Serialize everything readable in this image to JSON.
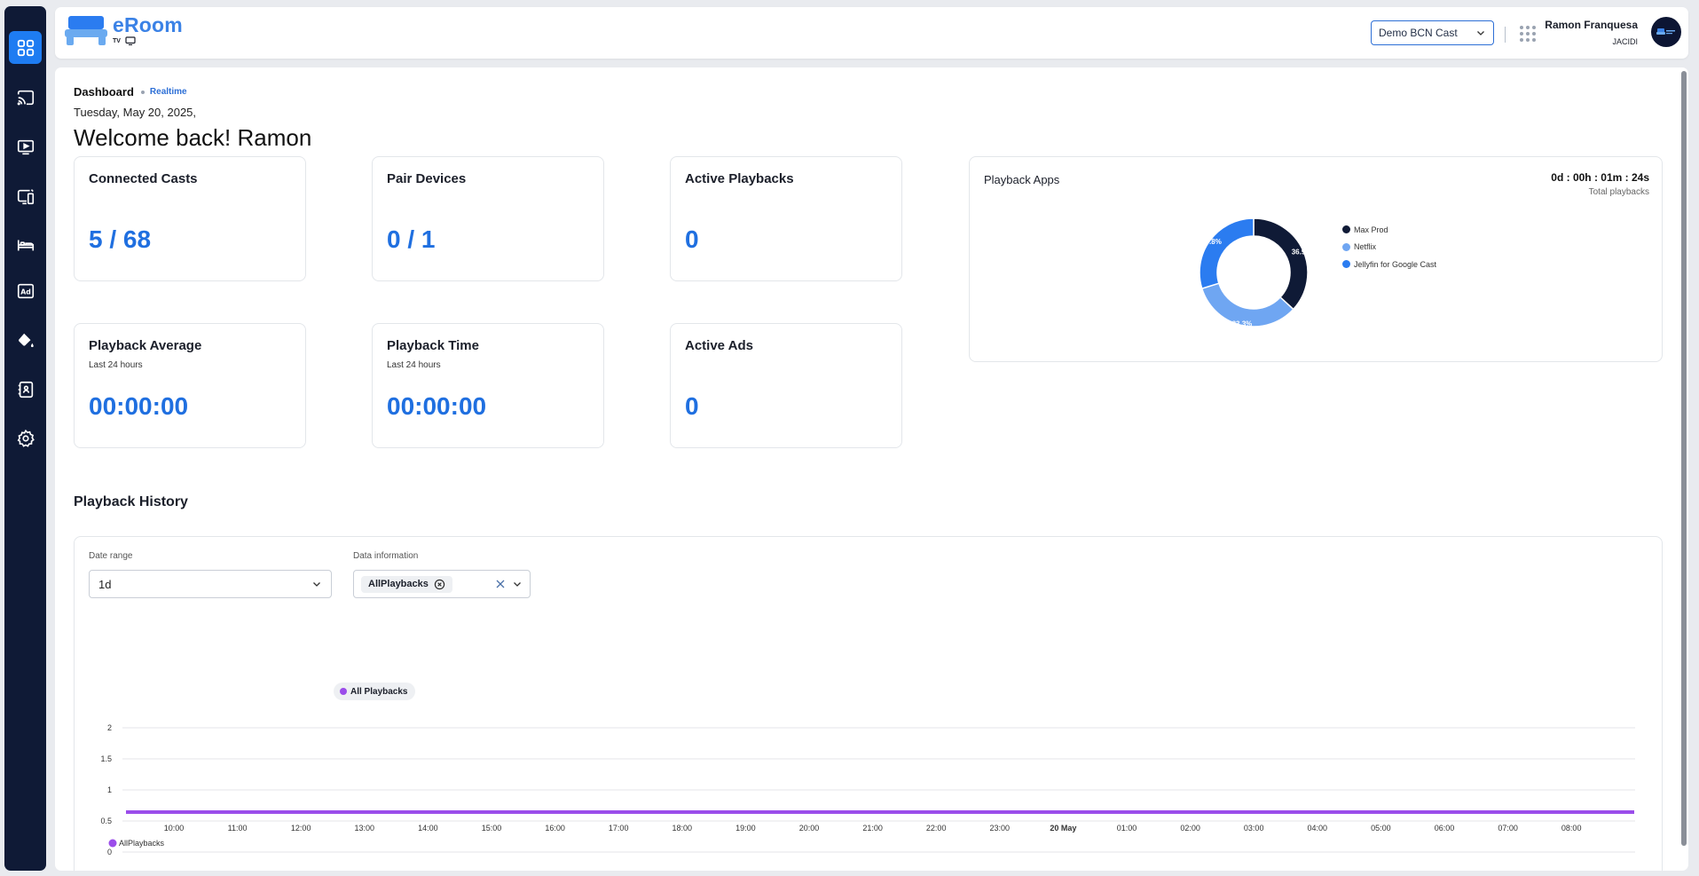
{
  "header": {
    "brand": "eRoom",
    "brand_sub": "TV",
    "cast_selector": "Demo BCN Cast",
    "user_name": "Ramon Franquesa",
    "user_org": "JACIDI"
  },
  "sidebar": {
    "items": [
      {
        "icon": "dashboard-icon",
        "active": true
      },
      {
        "icon": "cast-icon"
      },
      {
        "icon": "playback-icon"
      },
      {
        "icon": "devices-icon"
      },
      {
        "icon": "bed-icon"
      },
      {
        "icon": "ads-icon"
      },
      {
        "icon": "paint-bucket-icon"
      },
      {
        "icon": "contacts-icon"
      },
      {
        "icon": "settings-icon"
      }
    ]
  },
  "breadcrumb": {
    "page": "Dashboard",
    "mode": "Realtime"
  },
  "date_line": "Tuesday, May 20, 2025,",
  "welcome": "Welcome back! Ramon",
  "cards": {
    "connected_casts": {
      "title": "Connected Casts",
      "value": "5 / 68"
    },
    "pair_devices": {
      "title": "Pair Devices",
      "value": "0 / 1"
    },
    "active_playbacks": {
      "title": "Active Playbacks",
      "value": "0"
    },
    "playback_average": {
      "title": "Playback Average",
      "sub": "Last 24 hours",
      "value": "00:00:00"
    },
    "playback_time": {
      "title": "Playback Time",
      "sub": "Last 24 hours",
      "value": "00:00:00"
    },
    "active_ads": {
      "title": "Active Ads",
      "value": "0"
    }
  },
  "playback_apps": {
    "title": "Playback Apps",
    "duration": "0d : 00h : 01m : 24s",
    "duration_label": "Total playbacks"
  },
  "history": {
    "title": "Playback History",
    "date_range_label": "Date range",
    "date_range_value": "1d",
    "data_info_label": "Data information",
    "data_info_chip": "AllPlaybacks",
    "series_pill": "All Playbacks"
  },
  "chart_data": [
    {
      "type": "pie",
      "title": "Playback Apps",
      "labels": [
        "Max Prod",
        "Netflix",
        "Jellyfin for Google Cast"
      ],
      "values": [
        36.9,
        33.3,
        29.8
      ],
      "value_labels": [
        "36.9%",
        "33.3%",
        "29.8%"
      ],
      "colors": [
        "#0f1a36",
        "#6fa6f2",
        "#2b7cf0"
      ],
      "donut": true,
      "legend": "right"
    },
    {
      "type": "line",
      "categories": [
        "10:00",
        "11:00",
        "12:00",
        "13:00",
        "14:00",
        "15:00",
        "16:00",
        "17:00",
        "18:00",
        "19:00",
        "20:00",
        "21:00",
        "22:00",
        "23:00",
        "20 May",
        "01:00",
        "02:00",
        "03:00",
        "04:00",
        "05:00",
        "06:00",
        "07:00",
        "08:00"
      ],
      "series": [
        {
          "name": "AllPlaybacks",
          "values": [
            0,
            0,
            0,
            0,
            0,
            0,
            0,
            0,
            0,
            0,
            0,
            0,
            0,
            0,
            0,
            0,
            0,
            0,
            0,
            0,
            0,
            0,
            0
          ],
          "color": "#9b4dea"
        }
      ],
      "yticks": [
        "0",
        "0.5",
        "1",
        "1.5",
        "2"
      ],
      "ylim": [
        0,
        2
      ],
      "grid": true,
      "legend": "bottom-left"
    }
  ]
}
